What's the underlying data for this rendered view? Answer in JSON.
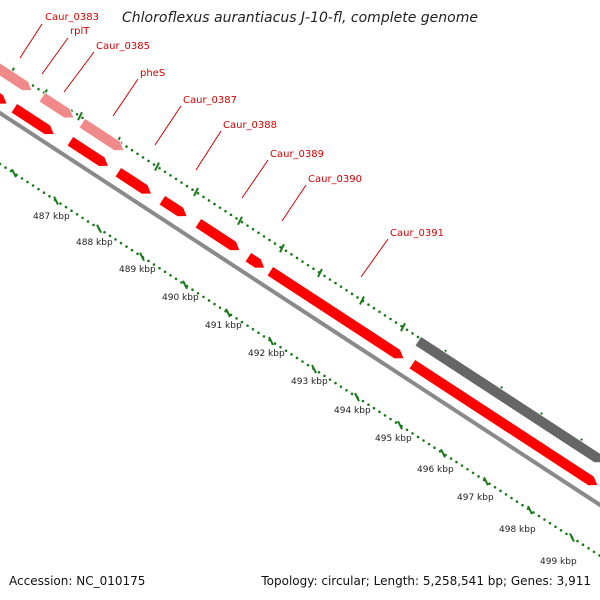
{
  "title": "Chloroflexus aurantiacus J-10-fl, complete genome",
  "footer": {
    "accession": "Accession: NC_010175",
    "summary": "Topology: circular; Length: 5,258,541 bp; Genes: 3,911"
  },
  "colors": {
    "gene_forward": "#ff0000",
    "gene_faded": "#f08a8a",
    "gene_other": "#666666",
    "backbone": "#8a8a8a",
    "tick": "#1a7a1a",
    "label": "#d40000"
  },
  "gene_labels": [
    {
      "name": "Caur_0383"
    },
    {
      "name": "rplT"
    },
    {
      "name": "Caur_0385"
    },
    {
      "name": "pheS"
    },
    {
      "name": "Caur_0387"
    },
    {
      "name": "Caur_0388"
    },
    {
      "name": "Caur_0389"
    },
    {
      "name": "Caur_0390"
    },
    {
      "name": "Caur_0391"
    }
  ],
  "tick_labels": [
    "487 kbp",
    "488 kbp",
    "489 kbp",
    "490 kbp",
    "491 kbp",
    "492 kbp",
    "493 kbp",
    "494 kbp",
    "495 kbp",
    "496 kbp",
    "497 kbp",
    "498 kbp",
    "499 kbp"
  ]
}
